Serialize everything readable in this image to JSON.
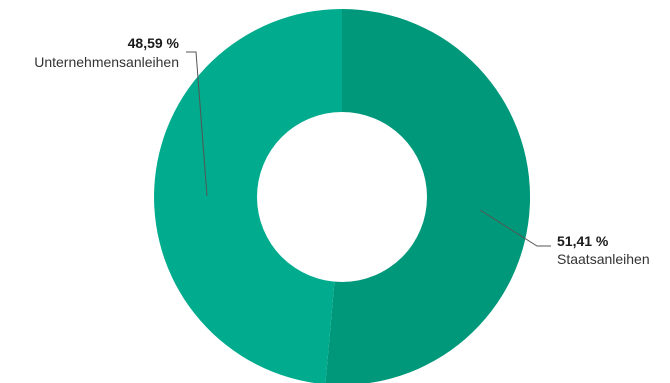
{
  "chart_data": {
    "type": "pie",
    "variant": "donut",
    "slices": [
      {
        "label": "Staatsanleihen",
        "value": 51.41,
        "value_label": "51,41 %",
        "color": "#00987A"
      },
      {
        "label": "Unternehmensanleihen",
        "value": 48.59,
        "value_label": "48,59 %",
        "color": "#00AB8E"
      }
    ],
    "title": "",
    "legend": "none"
  }
}
